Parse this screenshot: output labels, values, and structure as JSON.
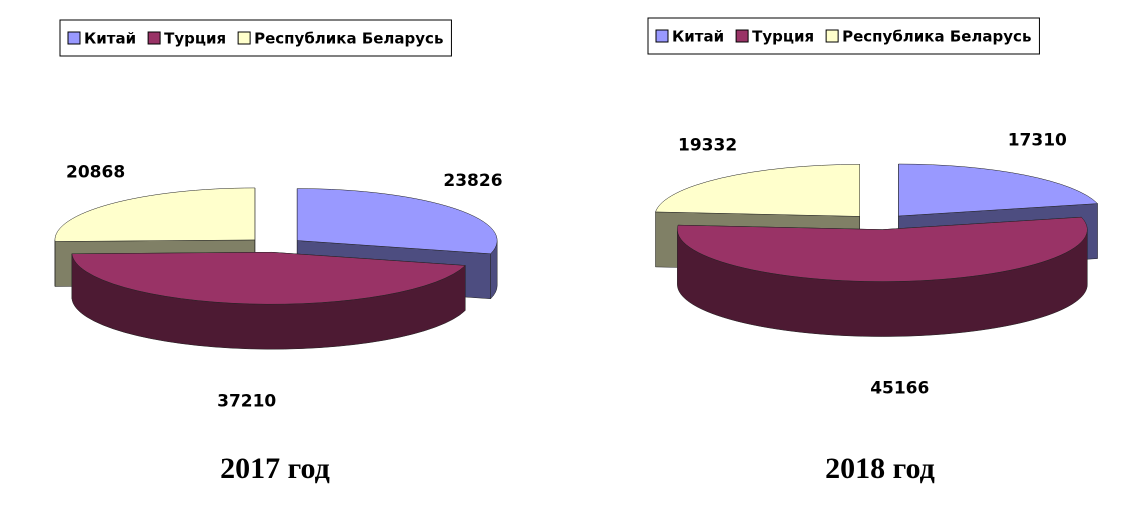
{
  "chart_data": [
    {
      "type": "pie",
      "title": "2017 год",
      "categories": [
        "Китай",
        "Турция",
        "Республика Беларусь"
      ],
      "values": [
        23826,
        37210,
        20868
      ],
      "colors": [
        "#9999ff",
        "#993366",
        "#ffffcc"
      ]
    },
    {
      "type": "pie",
      "title": "2018 год",
      "categories": [
        "Китай",
        "Турция",
        "Республика Беларусь"
      ],
      "values": [
        17310,
        45166,
        19332
      ],
      "colors": [
        "#9999ff",
        "#993366",
        "#ffffcc"
      ]
    }
  ]
}
